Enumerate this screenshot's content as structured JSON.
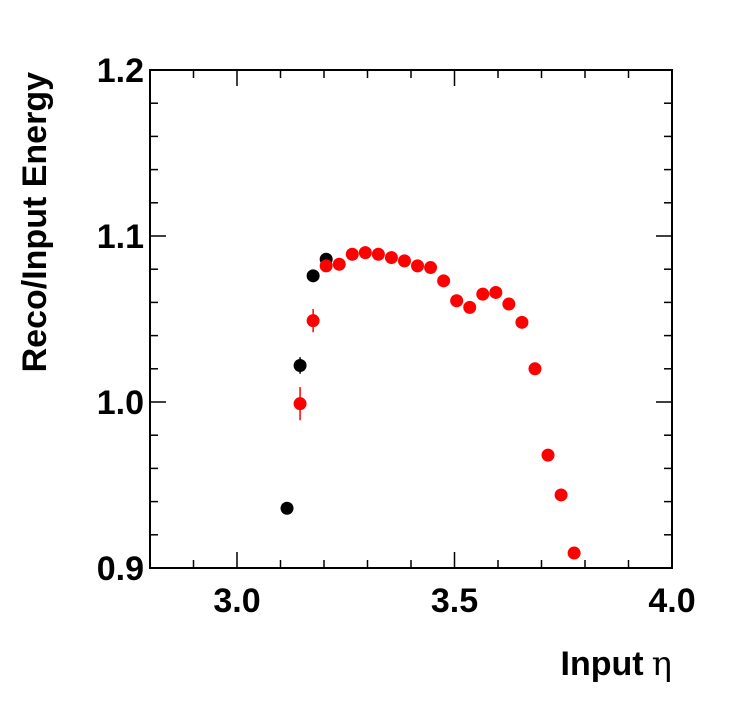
{
  "chart_data": {
    "type": "scatter",
    "xlabel": "Input",
    "xlabel_symbol": "η",
    "ylabel": "Reco/Input Energy",
    "xlim": [
      2.8,
      4.0
    ],
    "ylim": [
      0.9,
      1.2
    ],
    "x_ticks": [
      {
        "value": 3.0,
        "label": "3.0"
      },
      {
        "value": 3.5,
        "label": "3.5"
      },
      {
        "value": 4.0,
        "label": "4.0"
      }
    ],
    "y_ticks": [
      {
        "value": 0.9,
        "label": "0.9"
      },
      {
        "value": 1.0,
        "label": "1.0"
      },
      {
        "value": 1.1,
        "label": "1.1"
      },
      {
        "value": 1.2,
        "label": "1.2"
      }
    ],
    "x_minor_step": 0.1,
    "y_minor_step": 0.02,
    "grid": false,
    "series": [
      {
        "color": "#000000",
        "x": [
          3.115,
          3.145,
          3.175,
          3.205
        ],
        "y": [
          0.936,
          1.022,
          1.076,
          1.086
        ],
        "yerr": [
          0.002,
          0.005,
          0.003,
          0.002
        ]
      },
      {
        "color": "#ff0000",
        "x": [
          3.145,
          3.175,
          3.205,
          3.235,
          3.265,
          3.295,
          3.325,
          3.355,
          3.385,
          3.415,
          3.445,
          3.475,
          3.505,
          3.535,
          3.565,
          3.595,
          3.625,
          3.655,
          3.685,
          3.715,
          3.745,
          3.775
        ],
        "y": [
          0.999,
          1.049,
          1.082,
          1.083,
          1.089,
          1.09,
          1.089,
          1.087,
          1.085,
          1.082,
          1.081,
          1.073,
          1.061,
          1.057,
          1.065,
          1.066,
          1.059,
          1.048,
          1.02,
          0.968,
          0.944,
          0.909
        ],
        "yerr": [
          0.01,
          0.007,
          0.003,
          0.002,
          0.002,
          0.002,
          0.002,
          0.002,
          0.002,
          0.002,
          0.002,
          0.002,
          0.002,
          0.002,
          0.002,
          0.002,
          0.002,
          0.002,
          0.002,
          0.002,
          0.002,
          0.002
        ]
      }
    ]
  }
}
